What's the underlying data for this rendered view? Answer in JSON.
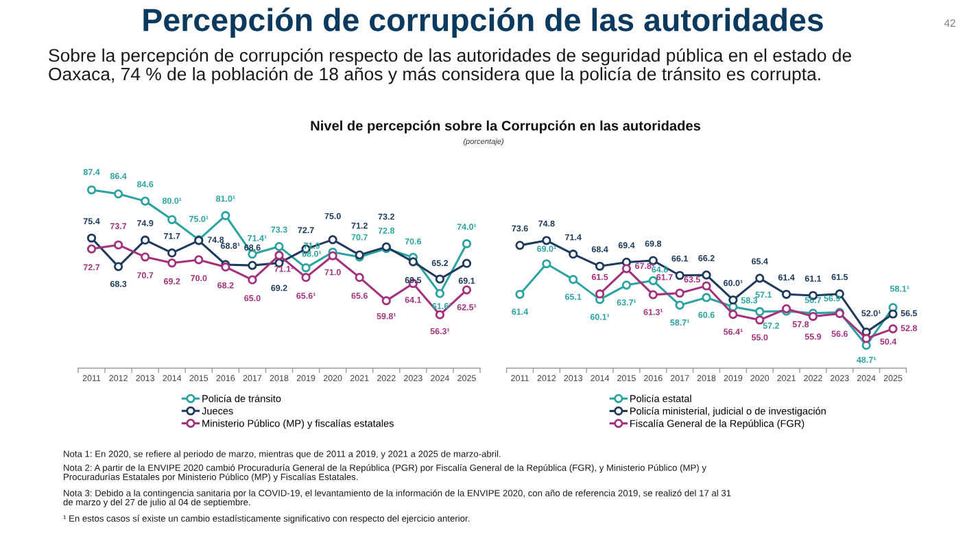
{
  "chart_data": [
    {
      "type": "line",
      "title": "Nivel de percepción sobre la Corrupción en las autoridades",
      "subtitle": "(porcentaje)",
      "categories": [
        "2011",
        "2012",
        "2013",
        "2014",
        "2015",
        "2016",
        "2017",
        "2018",
        "2019",
        "2020",
        "2021",
        "2022",
        "2023",
        "2024",
        "2025"
      ],
      "series": [
        {
          "name": "Policía de tránsito",
          "color": "#2ba3a1",
          "values": [
            87.4,
            86.4,
            84.6,
            80.0,
            75.0,
            81.0,
            71.4,
            73.3,
            68.0,
            71.9,
            70.7,
            72.8,
            70.6,
            61.6,
            74.0
          ],
          "value_labels": [
            "87.4",
            "86.4",
            "84.6",
            "80.0¹",
            "75.0¹",
            "81.0¹",
            "71.4¹",
            "73.3",
            "68.0¹",
            "71.9",
            "70.7",
            "72.8",
            "70.6",
            "61.6¹",
            "74.0¹"
          ]
        },
        {
          "name": "Jueces",
          "color": "#1e3a5c",
          "values": [
            75.4,
            68.3,
            74.9,
            71.7,
            74.8,
            68.8,
            68.6,
            69.2,
            72.7,
            75.0,
            71.2,
            73.2,
            69.5,
            65.2,
            69.1
          ],
          "value_labels": [
            "75.4",
            "68.3",
            "74.9",
            "71.7",
            "74.8",
            "68.8¹",
            "68.6",
            "69.2",
            "72.7",
            "75.0",
            "71.2",
            "73.2",
            "69.5",
            "65.2",
            "69.1"
          ]
        },
        {
          "name": "Ministerio Público (MP) y fiscalías estatales",
          "color": "#a3317d",
          "values": [
            72.7,
            73.7,
            70.7,
            69.2,
            70.0,
            68.2,
            65.0,
            71.1,
            65.6,
            71.0,
            65.6,
            59.8,
            64.1,
            56.3,
            62.5
          ],
          "value_labels": [
            "72.7",
            "73.7",
            "70.7",
            "69.2",
            "70.0",
            "68.2",
            "65.0",
            "71.1¹",
            "65.6¹",
            "71.0",
            "65.6",
            "59.8¹",
            "64.1",
            "56.3¹",
            "62.5¹"
          ]
        }
      ],
      "tick_labels": "x",
      "marker": "circle",
      "line_style": "solid",
      "legend": "bottom",
      "annotations": [
        "Percepción de corrupción de las autoridades",
        "Sobre la percepción de corrupción respecto de las autoridades de seguridad pública en el estado de\nOaxaca, 74 % de la población de 18 años y más considera que la policía de tránsito es corrupta.",
        "42",
        "Nota 1: En 2020, se refiere al periodo de marzo, mientras que de 2011 a 2019, y 2021 a 2025 de marzo-abril.",
        "Nota 2: A partir de la ENVIPE 2020 cambió Procuraduría General de la República (PGR) por Fiscalía General de la República (FGR), y Ministerio Público (MP) y\nProcuradurías Estatales por Ministerio Público (MP) y Fiscalías Estatales.",
        "Nota 3: Debido a la contingencia sanitaria por la COVID-19, el levantamiento de la información de la ENVIPE 2020, con año de referencia 2019, se realizó del 17 al 31\nde marzo y del 27 de julio al 04 de septiembre.",
        "¹ En estos casos sí existe un cambio estadísticamente significativo con respecto del ejercicio anterior."
      ]
    },
    {
      "type": "line",
      "categories": [
        "2011",
        "2012",
        "2013",
        "2014",
        "2015",
        "2016",
        "2017",
        "2018",
        "2019",
        "2020",
        "2021",
        "2022",
        "2023",
        "2024",
        "2025"
      ],
      "series": [
        {
          "name": "Policía estatal",
          "color": "#2ba3a1",
          "values": [
            61.4,
            69.0,
            65.1,
            60.1,
            63.7,
            64.8,
            58.7,
            60.6,
            58.3,
            57.1,
            57.2,
            56.7,
            56.9,
            48.7,
            58.1
          ],
          "value_labels": [
            "61.4",
            "69.0¹",
            "65.1",
            "60.1¹",
            "63.7¹",
            "64.8",
            "58.7¹",
            "60.6",
            "58.3",
            "57.1",
            "57.2",
            "56.7",
            "56.9",
            "48.7¹",
            "58.1¹"
          ]
        },
        {
          "name": "Policía ministerial, judicial o de investigación",
          "color": "#1e3a5c",
          "values": [
            73.6,
            74.8,
            71.4,
            68.4,
            69.4,
            69.8,
            66.1,
            66.2,
            60.0,
            65.4,
            61.4,
            61.1,
            61.5,
            52.0,
            56.5
          ],
          "value_labels": [
            "73.6",
            "74.8",
            "71.4",
            "68.4",
            "69.4",
            "69.8",
            "66.1",
            "66.2",
            "60.0¹",
            "65.4",
            "61.4",
            "61.1",
            "61.5",
            "52.0¹",
            "56.5"
          ]
        },
        {
          "name": "Fiscalía General de la República (FGR)",
          "color": "#a3317d",
          "values": [
            null,
            null,
            null,
            61.5,
            67.8,
            61.3,
            61.7,
            63.5,
            56.4,
            55.0,
            57.8,
            55.9,
            56.6,
            50.4,
            52.8
          ],
          "value_labels": [
            null,
            null,
            null,
            "61.5",
            "67.8¹",
            "61.3¹",
            "61.7",
            "63.5",
            "56.4¹",
            "55.0",
            "57.8",
            "55.9",
            "56.6",
            "50.4",
            "52.8"
          ]
        }
      ],
      "tick_labels": "x",
      "marker": "circle",
      "line_style": "solid",
      "legend": "bottom"
    }
  ]
}
